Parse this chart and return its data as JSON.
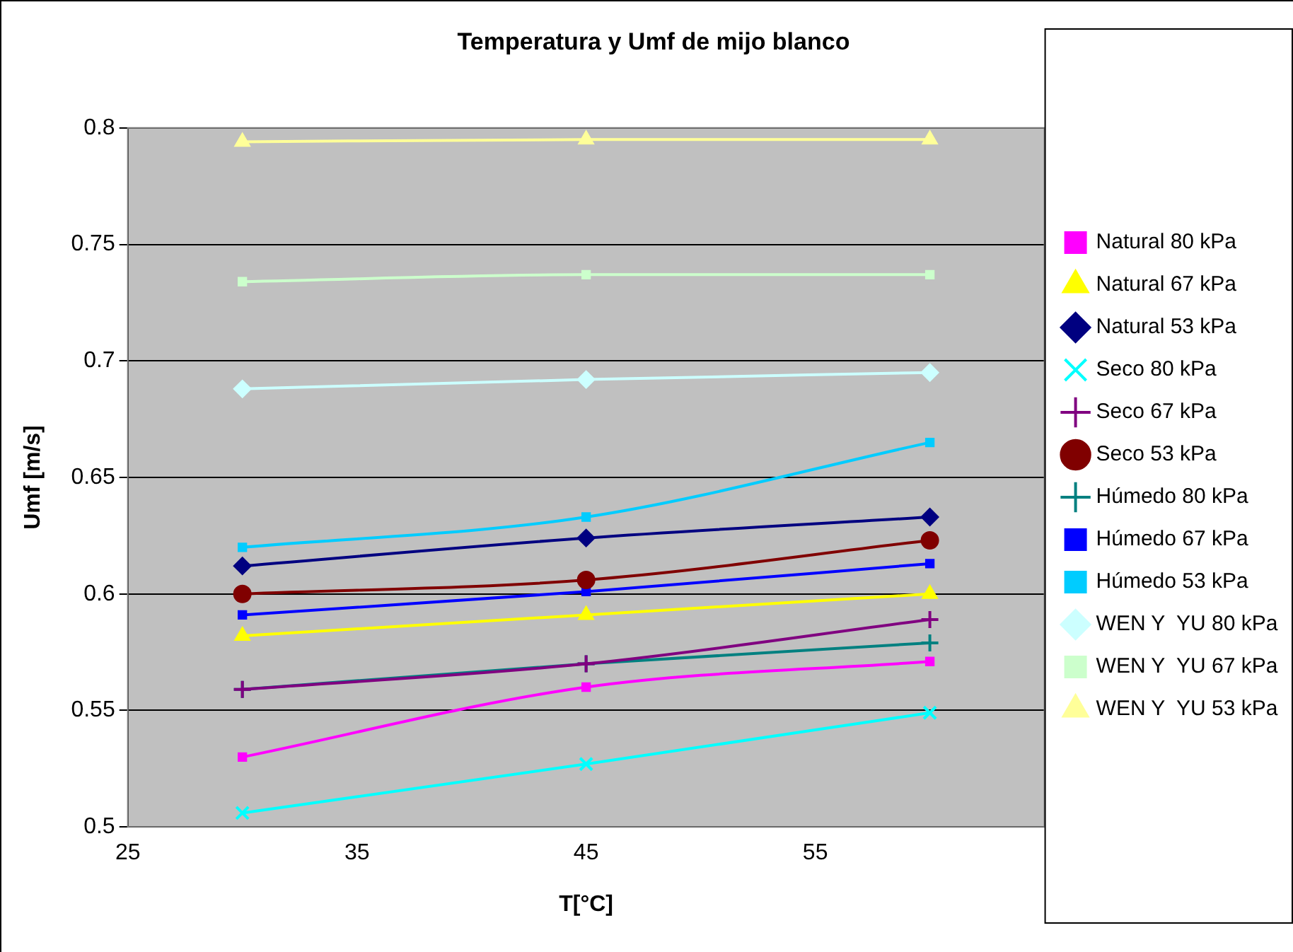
{
  "chart_data": {
    "type": "line",
    "title": "Temperatura y Umf de mijo blanco",
    "xlabel": "T[°C]",
    "ylabel": "Umf [m/s]",
    "x": [
      30,
      45,
      60
    ],
    "xlim": [
      25,
      65
    ],
    "xticks": [
      25,
      35,
      45,
      55
    ],
    "ylim": [
      0.5,
      0.8
    ],
    "yticks": [
      0.5,
      0.55,
      0.6,
      0.65,
      0.7,
      0.75,
      0.8
    ],
    "grid": "y",
    "legend": "right",
    "line_style": "solid",
    "series": [
      {
        "name": "Natural 80 kPa",
        "color": "#ff00ff",
        "marker": "square",
        "values": [
          0.53,
          0.56,
          0.571
        ]
      },
      {
        "name": "Natural 67 kPa",
        "color": "#ffff00",
        "marker": "triangle",
        "values": [
          0.582,
          0.591,
          0.6
        ]
      },
      {
        "name": "Natural 53 kPa",
        "color": "#000080",
        "marker": "diamond",
        "values": [
          0.612,
          0.624,
          0.633
        ]
      },
      {
        "name": "Seco 80 kPa",
        "color": "#00ffff",
        "marker": "x",
        "values": [
          0.506,
          0.527,
          0.549
        ]
      },
      {
        "name": "Seco 67 kPa",
        "color": "#800080",
        "marker": "cross",
        "values": [
          0.559,
          0.57,
          0.589
        ]
      },
      {
        "name": "Seco 53 kPa",
        "color": "#800000",
        "marker": "circle",
        "values": [
          0.6,
          0.606,
          0.623
        ]
      },
      {
        "name": "Húmedo 80 kPa",
        "color": "#008080",
        "marker": "cross",
        "values": [
          0.559,
          0.57,
          0.579
        ]
      },
      {
        "name": "Húmedo 67 kPa",
        "color": "#0000ff",
        "marker": "square",
        "values": [
          0.591,
          0.601,
          0.613
        ]
      },
      {
        "name": "Húmedo 53 kPa",
        "color": "#00ccff",
        "marker": "square",
        "values": [
          0.62,
          0.633,
          0.665
        ]
      },
      {
        "name": "WEN Y  YU 80 kPa",
        "color": "#ccffff",
        "marker": "diamond",
        "values": [
          0.688,
          0.692,
          0.695
        ]
      },
      {
        "name": "WEN Y  YU 67 kPa",
        "color": "#ccffcc",
        "marker": "square",
        "values": [
          0.734,
          0.737,
          0.737
        ]
      },
      {
        "name": "WEN Y  YU 53 kPa",
        "color": "#ffff99",
        "marker": "triangle",
        "values": [
          0.794,
          0.795,
          0.795
        ]
      }
    ]
  }
}
